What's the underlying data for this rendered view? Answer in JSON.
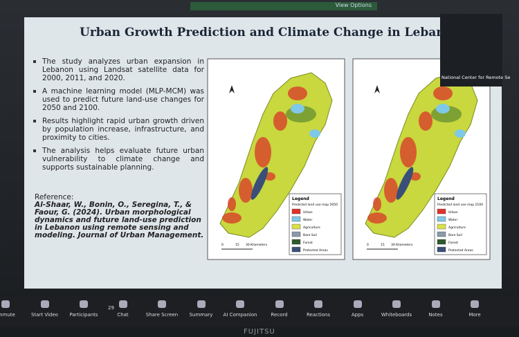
{
  "banner": "View Options",
  "slide": {
    "title": "Urban Growth Prediction and Climate Change in Lebanon",
    "bullets": [
      "The study analyzes urban expansion in Lebanon using Landsat satellite data for 2000, 2011, and 2020.",
      "A machine learning model (MLP-MCM) was used to predict future land-use changes for 2050 and 2100.",
      "Results highlight rapid urban growth driven by population increase, infrastructure, and proximity to cities.",
      "The analysis helps evaluate future urban vulnerability to climate change and supports sustainable planning."
    ],
    "reference_label": "Reference:",
    "reference": "Al-Shaar, W., Bonin, O., Seregina, T., & Faour, G. (2024). Urban morphological dynamics and future land-use prediction in Lebanon using remote sensing and modeling. Journal of Urban Management.",
    "maps": [
      {
        "legend_title": "Legend",
        "legend_subtitle": "Predicted land use map 2050",
        "classes": [
          "Urban",
          "Water",
          "Agriculture",
          "Bare Soil",
          "Forest",
          "Protected Areas"
        ],
        "scale": [
          "0",
          "15",
          "30 Kilometers"
        ]
      },
      {
        "legend_title": "Legend",
        "legend_subtitle": "Predicted land use map 2100",
        "classes": [
          "Urban",
          "Water",
          "Agriculture",
          "Bare Soil",
          "Forest",
          "Protected Areas"
        ],
        "scale": [
          "0",
          "15",
          "30 Kilometers"
        ]
      }
    ]
  },
  "video_tile": {
    "name": "National Center for Remote Se"
  },
  "toolbar": {
    "items": [
      "Unmute",
      "Start Video",
      "Participants",
      "Chat",
      "Share Screen",
      "Summary",
      "AI Companion",
      "Record",
      "Reactions",
      "Apps",
      "Whiteboards",
      "Notes",
      "More"
    ],
    "participants_count": "29"
  },
  "brand": "FUJITSU"
}
